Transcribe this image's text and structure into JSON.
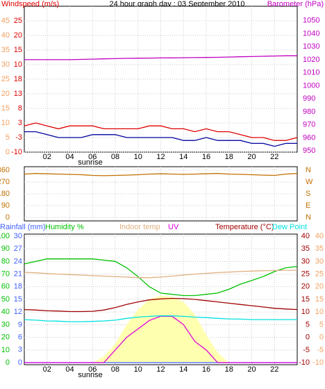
{
  "chart_data": [
    {
      "type": "line",
      "title": "24 hour graph day : 03 September 2010",
      "x": [
        0,
        1,
        2,
        3,
        4,
        5,
        6,
        7,
        8,
        9,
        10,
        11,
        12,
        13,
        14,
        15,
        16,
        17,
        18,
        19,
        20,
        21,
        22,
        23,
        24
      ],
      "xlim": [
        0,
        24
      ],
      "xticks": [
        {
          "value": 2,
          "label": "02"
        },
        {
          "value": 4,
          "label": "04"
        },
        {
          "value": 6,
          "label": "06"
        },
        {
          "value": 8,
          "label": "08"
        },
        10,
        12,
        14,
        16,
        18,
        20,
        22
      ],
      "sunrise_label": "sunrise",
      "sunrise": 5.8,
      "ylim": [
        0,
        50
      ],
      "yticks": [
        45,
        40,
        35,
        30,
        25,
        20,
        15,
        10,
        5,
        0
      ],
      "inner_ticks": [
        25,
        20,
        15,
        10,
        18,
        13,
        8,
        3,
        -3,
        -10
      ],
      "y2lim": [
        949,
        1061
      ],
      "y2ticks": [
        1050,
        1040,
        1030,
        1020,
        1010,
        1000,
        990,
        980,
        970,
        960,
        950
      ],
      "grid": true,
      "series": [
        {
          "name": "Windspeed (m/s)",
          "color": "#e00000",
          "values": [
            9,
            10,
            9,
            8,
            9,
            9,
            9,
            8,
            8,
            8,
            8,
            9,
            9,
            8,
            8,
            7,
            8,
            7,
            7,
            6,
            5,
            5,
            4,
            4,
            5
          ]
        },
        {
          "color": "#0000a0",
          "values": [
            7,
            7,
            6,
            5,
            5,
            5,
            6,
            6,
            6,
            5,
            5,
            5,
            5,
            5,
            4,
            4,
            5,
            4,
            4,
            4,
            3,
            3,
            2,
            3,
            3
          ]
        },
        {
          "name": "Barometer (hPa)",
          "color": "#c000c0",
          "axis": "y2",
          "values": [
            1020,
            1020,
            1020,
            1020,
            1020,
            1020.2,
            1020.4,
            1020.6,
            1020.8,
            1021,
            1021.1,
            1021.2,
            1021.3,
            1021.4,
            1021.5,
            1021.6,
            1021.7,
            1021.8,
            1022,
            1022.2,
            1022.4,
            1022.6,
            1022.8,
            1023,
            1023
          ]
        }
      ]
    },
    {
      "type": "line",
      "x": [
        0,
        1,
        2,
        3,
        4,
        5,
        6,
        7,
        8,
        9,
        10,
        11,
        12,
        13,
        14,
        15,
        16,
        17,
        18,
        19,
        20,
        21,
        22,
        23,
        24
      ],
      "xlim": [
        0,
        24
      ],
      "xticks": [
        2,
        4,
        6,
        8,
        10,
        12,
        14,
        16,
        18,
        20,
        22
      ],
      "ylim": [
        -26,
        386
      ],
      "yticks": [
        360,
        270,
        180,
        90,
        0
      ],
      "direction_labels": [
        "N",
        "W",
        "S",
        "E",
        "N"
      ],
      "grid": true,
      "series": [
        {
          "color": "#c07000",
          "values": [
            330,
            335,
            332,
            330,
            328,
            325,
            320,
            318,
            320,
            322,
            325,
            330,
            332,
            330,
            328,
            330,
            332,
            335,
            330,
            328,
            325,
            322,
            320,
            330,
            335
          ]
        }
      ]
    },
    {
      "type": "line",
      "x": [
        0,
        1,
        2,
        3,
        4,
        5,
        6,
        7,
        8,
        9,
        10,
        11,
        12,
        13,
        14,
        15,
        16,
        17,
        18,
        19,
        20,
        21,
        22,
        23,
        24
      ],
      "xlim": [
        0,
        24
      ],
      "xticks": [
        {
          "value": 2,
          "label": "02"
        },
        {
          "value": 4,
          "label": "04"
        },
        {
          "value": 6,
          "label": "06"
        },
        {
          "value": 8,
          "label": "08"
        },
        10,
        12,
        14,
        16,
        18,
        20,
        22
      ],
      "sunrise_label": "sunrise",
      "sunrise": 5.8,
      "ylim": [
        -1.6,
        101.6
      ],
      "yticks": [
        100,
        90,
        80,
        70,
        60,
        50,
        40,
        30,
        20,
        10,
        0
      ],
      "y3lim": [
        -0.5,
        30.5
      ],
      "y3ticks": [
        30,
        27,
        24,
        21,
        18,
        15,
        12,
        9,
        6,
        3,
        0
      ],
      "y2lim": [
        -10.8,
        40.8
      ],
      "y2ticks": [
        40,
        35,
        30,
        25,
        20,
        15,
        10,
        5,
        0,
        -5,
        -10
      ],
      "grid": true,
      "series": [
        {
          "color": "#ffffb0",
          "fill": true,
          "values": [
            0,
            0,
            0,
            0,
            0,
            0,
            0,
            5,
            15,
            30,
            42,
            50,
            53,
            52,
            48,
            38,
            22,
            8,
            0,
            0,
            0,
            0,
            0,
            0,
            0
          ]
        },
        {
          "name": "Rainfall (mm)",
          "color": "#4060ff",
          "axis": "y3",
          "values": [
            0,
            0,
            0,
            0,
            0,
            0,
            0,
            0,
            0,
            0,
            0,
            0,
            0,
            0,
            0,
            0,
            0,
            0,
            0,
            0,
            0,
            0,
            0,
            0,
            0
          ]
        },
        {
          "name": "Humidity %",
          "color": "#00c000",
          "values": [
            78,
            80,
            82,
            82,
            82,
            82,
            82,
            81,
            80,
            75,
            68,
            60,
            55,
            54,
            53,
            53,
            54,
            55,
            58,
            62,
            65,
            68,
            72,
            75,
            76
          ]
        },
        {
          "name": "Indoor temp",
          "color": "#e0b080",
          "axis": "y2",
          "values": [
            25.7,
            25.5,
            25.2,
            25,
            24.8,
            24.6,
            24.4,
            24.2,
            24,
            23.8,
            23.6,
            23.6,
            23.8,
            24.2,
            24.6,
            25,
            25.3,
            25.6,
            25.8,
            26,
            26.2,
            26.3,
            26.4,
            26.5,
            26.5
          ]
        },
        {
          "name": "UV",
          "color": "#e000e0",
          "axis": "y3",
          "values": [
            0,
            0,
            0,
            0,
            0,
            0,
            0,
            0,
            3,
            6,
            8,
            10,
            11,
            11,
            9,
            5,
            3,
            0,
            0,
            0,
            0,
            0,
            0,
            0,
            0
          ]
        },
        {
          "name": "Temperature (°C)",
          "color": "#a00000",
          "axis": "y2",
          "values": [
            11,
            10.8,
            10.5,
            10.4,
            10.2,
            10.2,
            10.3,
            10.8,
            11.8,
            13,
            14,
            14.8,
            15.2,
            15.4,
            15.3,
            15,
            14.5,
            14,
            13.5,
            13,
            12.5,
            12,
            11.5,
            11.2,
            11
          ]
        },
        {
          "name": "Dew Point",
          "color": "#00e0e0",
          "axis": "y2",
          "values": [
            7,
            6.8,
            6.5,
            6.4,
            6.2,
            6.2,
            6.3,
            6.5,
            6.8,
            7.5,
            8,
            8.3,
            8.5,
            8.5,
            8.3,
            8,
            7.8,
            7.5,
            7.3,
            7.2,
            7,
            7,
            7,
            7,
            7
          ]
        }
      ]
    }
  ]
}
